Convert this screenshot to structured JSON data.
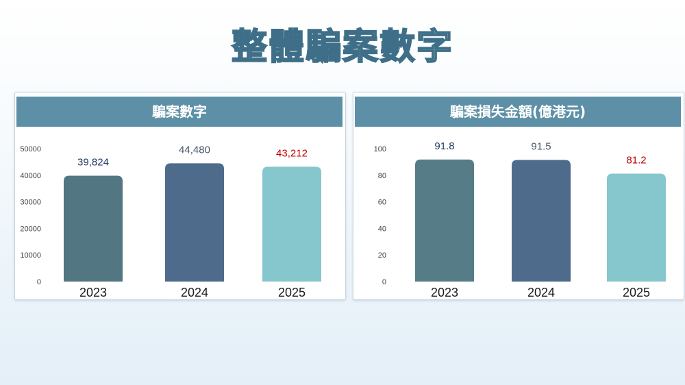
{
  "page": {
    "title": "整體騙案數字"
  },
  "chart_data": [
    {
      "type": "bar",
      "title": "騙案數字",
      "categories": [
        "2023",
        "2024",
        "2025"
      ],
      "values": [
        39824,
        44480,
        43212
      ],
      "value_labels": [
        "39,824",
        "44,480",
        "43,212"
      ],
      "ylim": [
        0,
        50000
      ],
      "yticks": [
        0,
        10000,
        20000,
        30000,
        40000,
        50000
      ],
      "bar_colors": [
        "#527682",
        "#4e6b8c",
        "#86c6cd"
      ],
      "label_colors": [
        "#203864",
        "#44546a",
        "#c00000"
      ],
      "grid": false,
      "legend": "none"
    },
    {
      "type": "bar",
      "title": "騙案損失金額(億港元)",
      "categories": [
        "2023",
        "2024",
        "2025"
      ],
      "values": [
        91.8,
        91.5,
        81.2
      ],
      "value_labels": [
        "91.8",
        "91.5",
        "81.2"
      ],
      "ylim": [
        0,
        100
      ],
      "yticks": [
        0,
        20,
        40,
        60,
        80,
        100
      ],
      "bar_colors": [
        "#567c87",
        "#4e6b8c",
        "#86c6cd"
      ],
      "label_colors": [
        "#203864",
        "#44546a",
        "#c00000"
      ],
      "grid": false,
      "legend": "none"
    }
  ]
}
